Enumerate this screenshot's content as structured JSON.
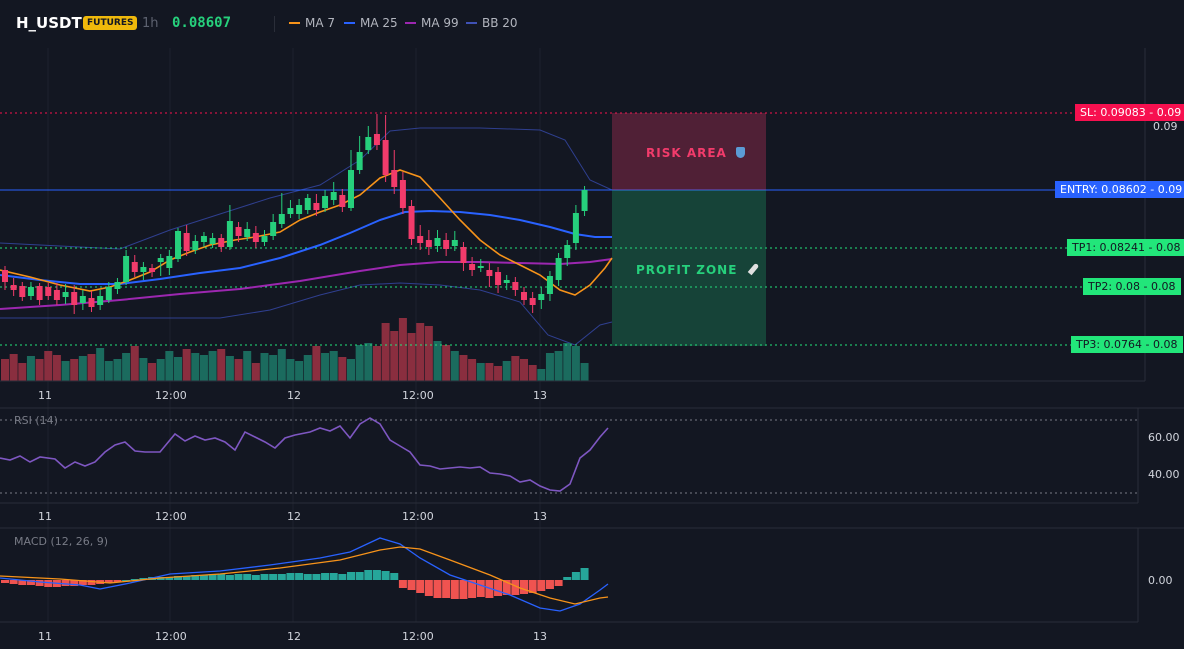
{
  "header": {
    "symbol": "H_USDT",
    "badge": "FUTURES",
    "interval": "1h",
    "last_price": "0.08607",
    "legend": [
      {
        "label": "MA 7",
        "color": "#f7931a"
      },
      {
        "label": "MA 25",
        "color": "#2962ff"
      },
      {
        "label": "MA 99",
        "color": "#9c27b0"
      },
      {
        "label": "BB 20",
        "color": "#3f51b5"
      }
    ]
  },
  "price_labels": {
    "sl": "SL: 0.09083 - 0.09",
    "sl_axis": "0.09",
    "entry": "ENTRY: 0.08602 - 0.09",
    "tp1": "TP1: 0.08241 - 0.08",
    "tp2": "TP2: 0.08 - 0.08",
    "tp3": "TP3: 0.0764 - 0.08"
  },
  "zones": {
    "risk": "RISK AREA",
    "profit": "PROFIT ZONE"
  },
  "time_axis": [
    "11",
    "12:00",
    "12",
    "12:00",
    "13"
  ],
  "rsi": {
    "title": "RSI (14)",
    "ticks": [
      "60.00",
      "40.00"
    ]
  },
  "macd": {
    "title": "MACD (12, 26, 9)",
    "ticks": [
      "0.00"
    ]
  },
  "colors": {
    "up": "#26d07c",
    "down": "#f23b6b",
    "sl": "#f7104f",
    "entry": "#2962ff",
    "tp": "#22e67a"
  }
}
